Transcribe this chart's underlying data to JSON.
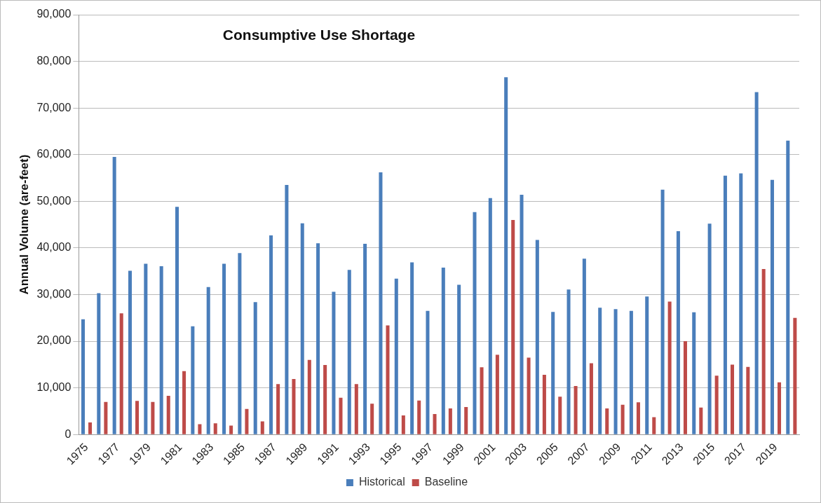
{
  "chart_data": {
    "type": "bar",
    "title": "Consumptive Use Shortage",
    "ylabel": "Annual Volume (are-feet)",
    "categories": [
      "1975",
      null,
      "1977",
      null,
      "1979",
      null,
      "1981",
      null,
      "1983",
      null,
      "1985",
      null,
      "1987",
      null,
      "1989",
      null,
      "1991",
      null,
      "1993",
      null,
      "1995",
      null,
      "1997",
      null,
      "1999",
      null,
      "2001",
      null,
      "2003",
      null,
      "2005",
      null,
      "2007",
      null,
      "2009",
      null,
      "2011",
      null,
      "2013",
      null,
      "2015",
      null,
      "2017",
      null,
      "2019",
      null
    ],
    "series": [
      {
        "name": "Historical",
        "color": "#4a7ebb",
        "values": [
          24700,
          30300,
          59500,
          35100,
          36600,
          36100,
          48800,
          23200,
          31600,
          36600,
          38900,
          28400,
          42700,
          53500,
          45300,
          41000,
          30600,
          35300,
          40900,
          56200,
          33400,
          36900,
          26500,
          35800,
          32100,
          47700,
          50700,
          76600,
          51400,
          41700,
          26300,
          31100,
          37700,
          27200,
          26900,
          26500,
          29600,
          52500,
          43600,
          26200,
          45200,
          55500,
          56000,
          73400,
          54600,
          63000
        ]
      },
      {
        "name": "Baseline",
        "color": "#be4b48",
        "values": [
          2600,
          7000,
          26000,
          7200,
          7000,
          8300,
          13600,
          2200,
          2400,
          1900,
          5500,
          2800,
          10800,
          11900,
          16000,
          14900,
          7900,
          10800,
          6600,
          23400,
          4100,
          7300,
          4400,
          5600,
          5900,
          14400,
          17100,
          46000,
          16500,
          12800,
          8100,
          10400,
          15300,
          5600,
          6400,
          6900,
          3700,
          28500,
          20000,
          5800,
          12600,
          15000,
          14500,
          35500,
          11200,
          25000
        ]
      }
    ],
    "ylim": [
      0,
      90000
    ],
    "yticks": [
      0,
      {
        "value": 10000,
        "label": "10,000"
      },
      {
        "value": 20000,
        "label": "20,000"
      },
      {
        "value": 30000,
        "label": "30,000"
      },
      {
        "value": 40000,
        "label": "40,000"
      },
      {
        "value": 50000,
        "label": "50,000"
      },
      {
        "value": 60000,
        "label": "60,000"
      },
      {
        "value": 70000,
        "label": "70,000"
      },
      {
        "value": 80000,
        "label": "80,000"
      },
      {
        "value": 90000,
        "label": "90,000"
      }
    ],
    "grid": "y",
    "legend": "bottom"
  }
}
